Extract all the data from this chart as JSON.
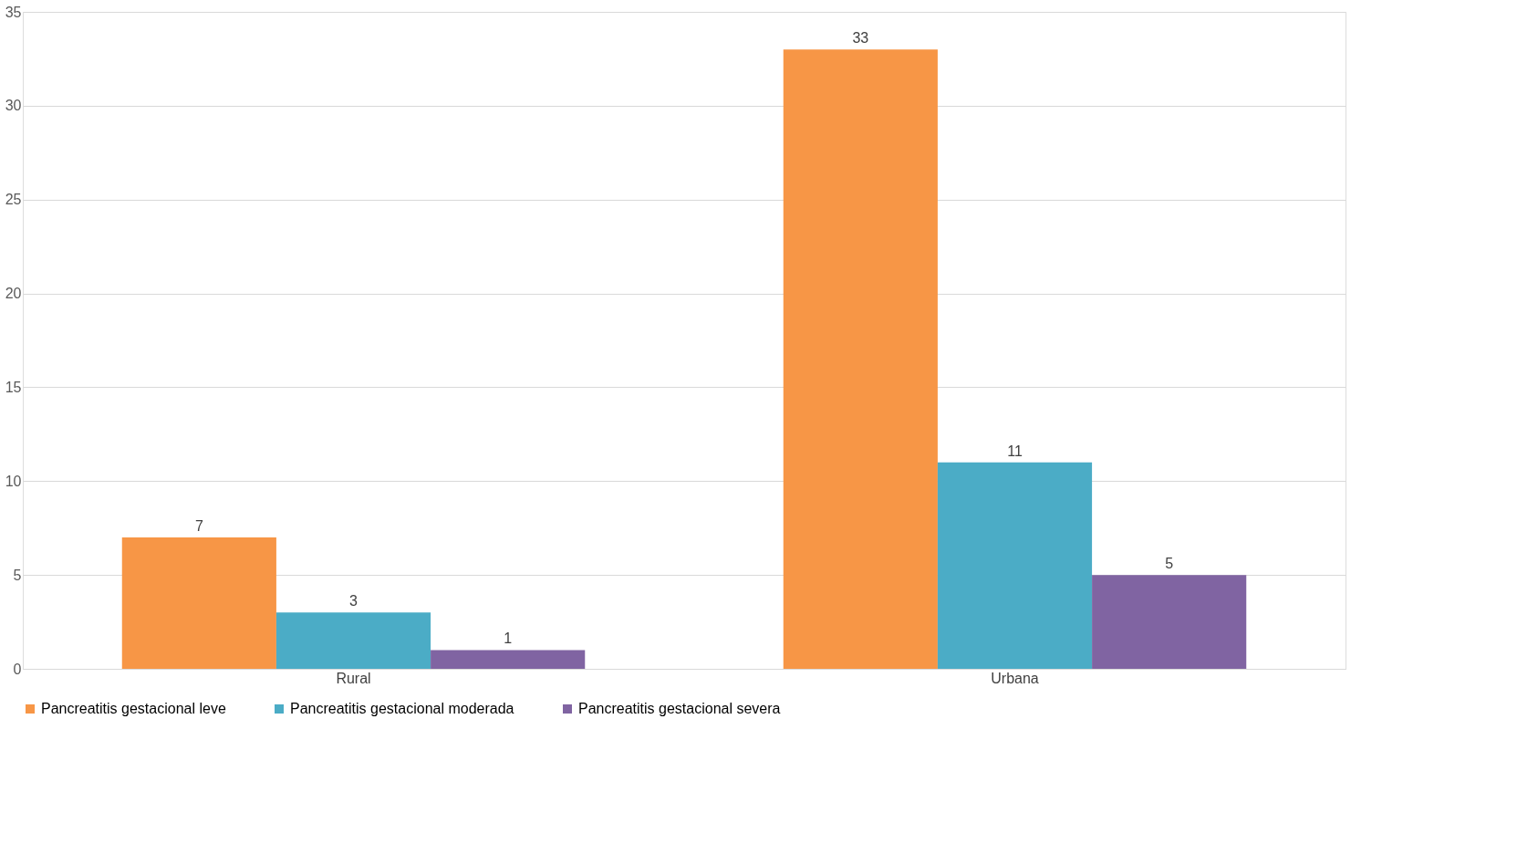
{
  "chart_data": {
    "type": "bar",
    "categories": [
      "Rural",
      "Urbana"
    ],
    "series": [
      {
        "name": "Pancreatitis gestacional leve",
        "color": "#f79646",
        "values": [
          7,
          33
        ]
      },
      {
        "name": "Pancreatitis gestacional moderada",
        "color": "#4bacc6",
        "values": [
          3,
          11
        ]
      },
      {
        "name": "Pancreatitis gestacional severa",
        "color": "#8064a2",
        "values": [
          1,
          5
        ]
      }
    ],
    "ylim": [
      0,
      35
    ],
    "yticks": [
      0,
      5,
      10,
      15,
      20,
      25,
      30,
      35
    ],
    "grid": "y",
    "legend": "bottom",
    "data_labels": true
  }
}
